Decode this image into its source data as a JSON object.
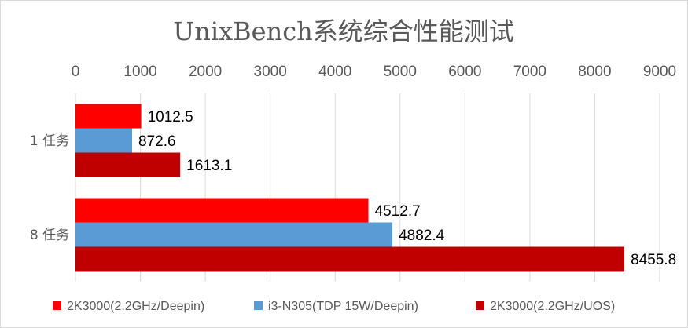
{
  "chart_data": {
    "type": "bar",
    "orientation": "horizontal",
    "title": "UnixBench系统综合性能测试",
    "categories": [
      "1 任务",
      "8 任务"
    ],
    "series": [
      {
        "name": "2K3000(2.2GHz/Deepin)",
        "color": "#ff0000",
        "values": [
          1012.5,
          4512.7
        ],
        "labels": [
          "1012.5",
          "4512.7"
        ]
      },
      {
        "name": "i3-N305(TDP 15W/Deepin)",
        "color": "#5b9bd5",
        "values": [
          872.6,
          4882.4
        ],
        "labels": [
          "872.6",
          "4882.4"
        ]
      },
      {
        "name": "2K3000(2.2GHz/UOS)",
        "color": "#c00000",
        "values": [
          1613.1,
          8455.8
        ],
        "labels": [
          "1613.1",
          "8455.8"
        ]
      }
    ],
    "xlim": [
      0,
      9000
    ],
    "xticks": [
      "0",
      "1000",
      "2000",
      "3000",
      "4000",
      "5000",
      "6000",
      "7000",
      "8000",
      "9000"
    ],
    "x_axis_position": "top",
    "grid": true,
    "legend_position": "bottom"
  }
}
